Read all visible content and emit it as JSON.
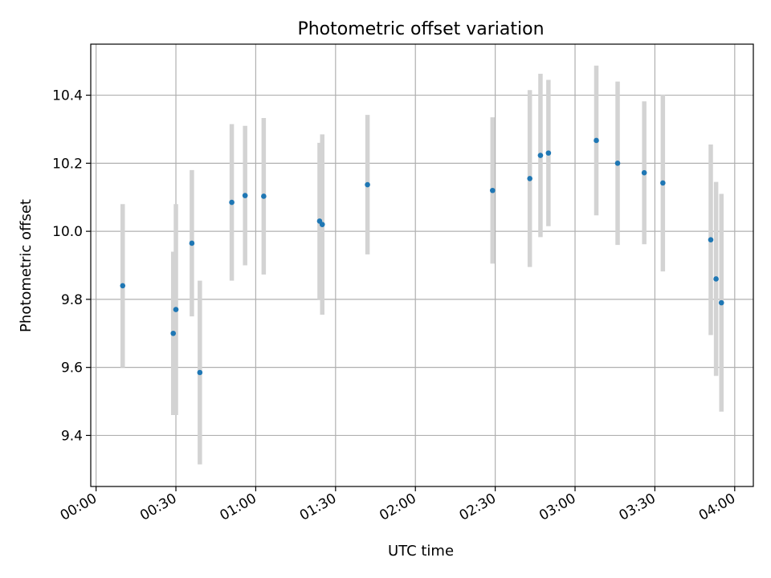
{
  "chart_data": {
    "type": "scatter",
    "title": "Photometric offset variation",
    "xlabel": "UTC time",
    "ylabel": "Photometric offset",
    "xlim_minutes": [
      -2,
      247
    ],
    "ylim": [
      9.25,
      10.55
    ],
    "grid": true,
    "x_ticks": [
      "00:00",
      "00:30",
      "01:00",
      "01:30",
      "02:00",
      "02:30",
      "03:00",
      "03:30",
      "04:00"
    ],
    "y_ticks": [
      "9.4",
      "9.6",
      "9.8",
      "10.0",
      "10.2",
      "10.4"
    ],
    "colors": {
      "point": "#1f77b4",
      "errorbar": "#d3d3d3",
      "grid": "#b0b0b0",
      "frame": "#000000"
    },
    "points": [
      {
        "t": "00:10",
        "y": 9.84,
        "yerr": 0.24
      },
      {
        "t": "00:29",
        "y": 9.7,
        "yerr": 0.24
      },
      {
        "t": "00:30",
        "y": 9.77,
        "yerr": 0.31
      },
      {
        "t": "00:36",
        "y": 9.965,
        "yerr": 0.215
      },
      {
        "t": "00:39",
        "y": 9.585,
        "yerr": 0.27
      },
      {
        "t": "00:51",
        "y": 10.085,
        "yerr": 0.23
      },
      {
        "t": "00:56",
        "y": 10.105,
        "yerr": 0.205
      },
      {
        "t": "01:03",
        "y": 10.103,
        "yerr": 0.23
      },
      {
        "t": "01:24",
        "y": 10.03,
        "yerr": 0.23
      },
      {
        "t": "01:25",
        "y": 10.02,
        "yerr": 0.265
      },
      {
        "t": "01:42",
        "y": 10.137,
        "yerr": 0.205
      },
      {
        "t": "02:29",
        "y": 10.12,
        "yerr": 0.215
      },
      {
        "t": "02:43",
        "y": 10.155,
        "yerr": 0.26
      },
      {
        "t": "02:47",
        "y": 10.223,
        "yerr": 0.24
      },
      {
        "t": "02:50",
        "y": 10.23,
        "yerr": 0.215
      },
      {
        "t": "03:08",
        "y": 10.267,
        "yerr": 0.22
      },
      {
        "t": "03:16",
        "y": 10.2,
        "yerr": 0.24
      },
      {
        "t": "03:26",
        "y": 10.172,
        "yerr": 0.21
      },
      {
        "t": "03:33",
        "y": 10.142,
        "yerr": 0.26
      },
      {
        "t": "03:51",
        "y": 9.975,
        "yerr": 0.28
      },
      {
        "t": "03:53",
        "y": 9.86,
        "yerr": 0.285
      },
      {
        "t": "03:55",
        "y": 9.79,
        "yerr": 0.32
      }
    ]
  }
}
